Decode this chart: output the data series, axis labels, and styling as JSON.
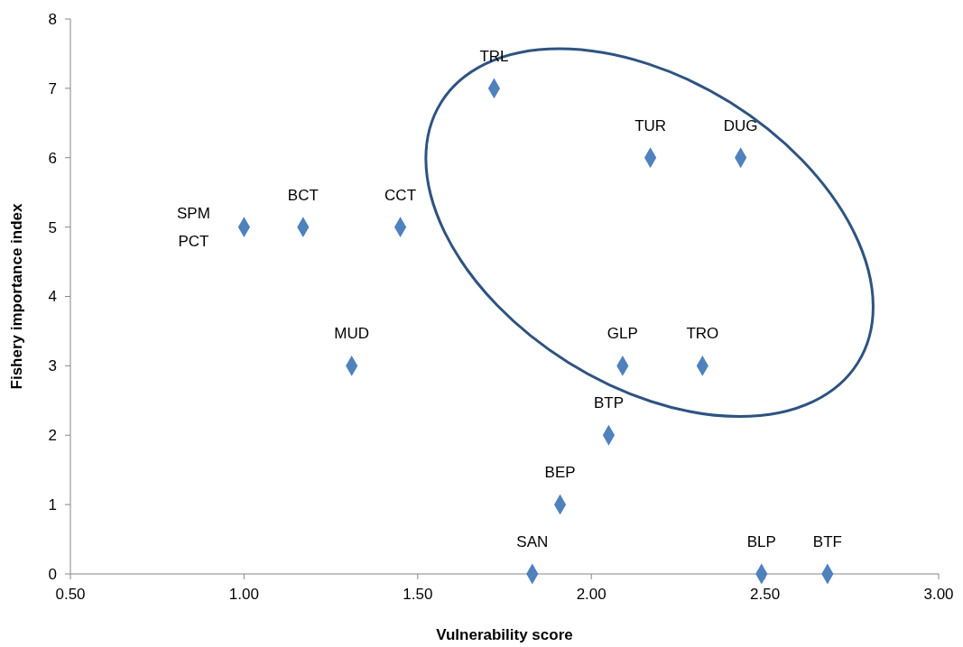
{
  "chart_data": {
    "type": "scatter",
    "xlabel": "Vulnerability score",
    "ylabel": "Fishery importance index",
    "x": [
      1.0,
      1.17,
      1.45,
      1.31,
      1.72,
      2.17,
      2.43,
      2.09,
      2.32,
      2.05,
      1.91,
      1.83,
      2.49,
      2.68
    ],
    "values": [
      5,
      5,
      5,
      3,
      7,
      6,
      6,
      3,
      3,
      2,
      1,
      0,
      0,
      0
    ],
    "color": "#4f81bd",
    "marker": "diamond",
    "grid": false,
    "xlim": [
      0.5,
      3.0
    ],
    "ylim": [
      0,
      8
    ],
    "xticks": [
      {
        "value": 0.5,
        "label": "0.50"
      },
      {
        "value": 1.0,
        "label": "1.00"
      },
      {
        "value": 1.5,
        "label": "1.50"
      },
      {
        "value": 2.0,
        "label": "2.00"
      },
      {
        "value": 2.5,
        "label": "2.50"
      },
      {
        "value": 3.0,
        "label": "3.00"
      }
    ],
    "yticks": [
      0,
      1,
      2,
      3,
      4,
      5,
      6,
      7,
      8
    ],
    "annotations": [
      {
        "text": "SPM",
        "x": 1.0,
        "y": 5
      },
      {
        "text": "PCT",
        "x": 1.0,
        "y": 5
      },
      {
        "text": "BCT",
        "x": 1.17,
        "y": 5
      },
      {
        "text": "CCT",
        "x": 1.45,
        "y": 5
      },
      {
        "text": "MUD",
        "x": 1.31,
        "y": 3
      },
      {
        "text": "TRL",
        "x": 1.72,
        "y": 7
      },
      {
        "text": "TUR",
        "x": 2.17,
        "y": 6
      },
      {
        "text": "DUG",
        "x": 2.43,
        "y": 6
      },
      {
        "text": "GLP",
        "x": 2.09,
        "y": 3
      },
      {
        "text": "TRO",
        "x": 2.32,
        "y": 3
      },
      {
        "text": "BTP",
        "x": 2.05,
        "y": 2
      },
      {
        "text": "BEP",
        "x": 1.91,
        "y": 1
      },
      {
        "text": "SAN",
        "x": 1.83,
        "y": 0
      },
      {
        "text": "BLP",
        "x": 2.49,
        "y": 0
      },
      {
        "text": "BTF",
        "x": 2.68,
        "y": 0
      }
    ]
  }
}
